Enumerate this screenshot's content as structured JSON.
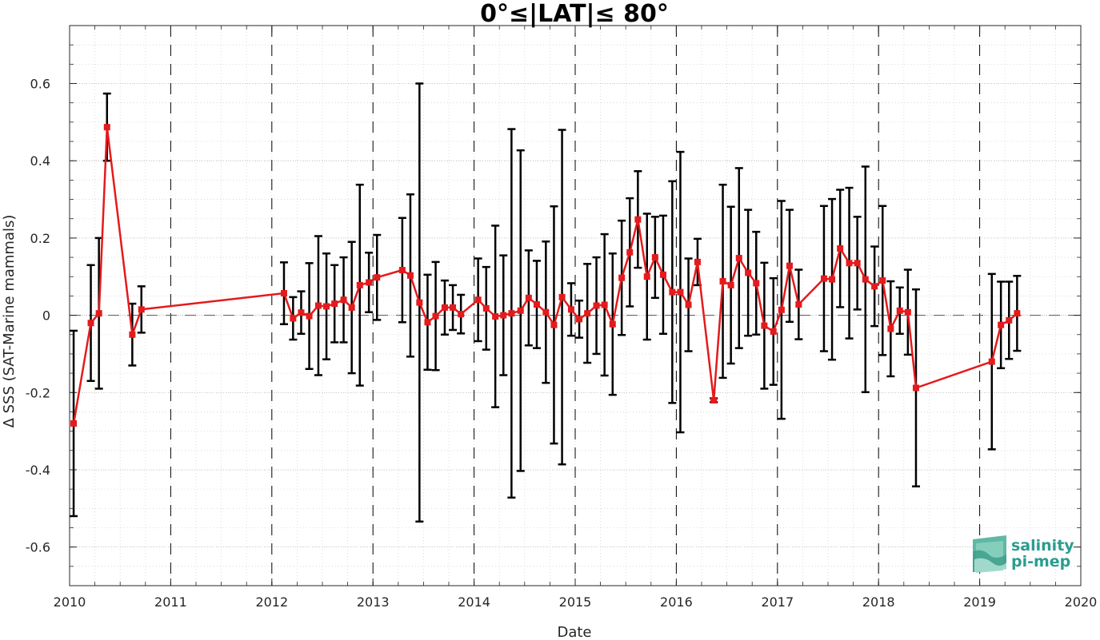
{
  "chart_data": {
    "type": "line",
    "title": "0°≤|LAT|≤ 80°",
    "xlabel": "Date",
    "ylabel": "Δ SSS (SAT-Marine mammals)",
    "xlim": [
      2010,
      2020
    ],
    "ylim": [
      -0.7,
      0.75
    ],
    "x_ticks": [
      "2010",
      "2011",
      "2012",
      "2013",
      "2014",
      "2015",
      "2016",
      "2017",
      "2018",
      "2019",
      "2020"
    ],
    "y_ticks": [
      "-0.6",
      "-0.4",
      "-0.2",
      "0",
      "0.2",
      "0.4",
      "0.6"
    ],
    "y_tick_values": [
      -0.6,
      -0.4,
      -0.2,
      0,
      0.2,
      0.4,
      0.6
    ],
    "grid": true,
    "year_separators": "dashed vertical lines at each year",
    "zero_line": "dashed horizontal line at 0",
    "colors": {
      "series": "#e41a1c",
      "errorbars": "#000000",
      "grid": "#c8c8c8"
    },
    "series": [
      {
        "marker": "square",
        "segments": [
          [
            {
              "x": 2010.04,
              "y": -0.28,
              "err": 0.24
            },
            {
              "x": 2010.21,
              "y": -0.02,
              "err": 0.15
            },
            {
              "x": 2010.29,
              "y": 0.005,
              "err": 0.195
            },
            {
              "x": 2010.37,
              "y": 0.487,
              "err": 0.087
            },
            {
              "x": 2010.62,
              "y": -0.05,
              "err": 0.08
            },
            {
              "x": 2010.71,
              "y": 0.015,
              "err": 0.06
            },
            {
              "x": 2012.12,
              "y": 0.057,
              "err": 0.08
            },
            {
              "x": 2012.21,
              "y": -0.008,
              "err": 0.055
            },
            {
              "x": 2012.29,
              "y": 0.007,
              "err": 0.055
            },
            {
              "x": 2012.37,
              "y": -0.002,
              "err": 0.137
            },
            {
              "x": 2012.46,
              "y": 0.025,
              "err": 0.18
            },
            {
              "x": 2012.54,
              "y": 0.023,
              "err": 0.137
            },
            {
              "x": 2012.62,
              "y": 0.03,
              "err": 0.1
            },
            {
              "x": 2012.71,
              "y": 0.04,
              "err": 0.11
            },
            {
              "x": 2012.79,
              "y": 0.02,
              "err": 0.17
            },
            {
              "x": 2012.87,
              "y": 0.078,
              "err": 0.26
            },
            {
              "x": 2012.96,
              "y": 0.085,
              "err": 0.077
            },
            {
              "x": 2013.04,
              "y": 0.098,
              "err": 0.11
            },
            {
              "x": 2013.29,
              "y": 0.117,
              "err": 0.135
            },
            {
              "x": 2013.37,
              "y": 0.103,
              "err": 0.21
            },
            {
              "x": 2013.46,
              "y": 0.033,
              "err": 0.567
            },
            {
              "x": 2013.54,
              "y": -0.018,
              "err": 0.123
            },
            {
              "x": 2013.62,
              "y": -0.002,
              "err": 0.14
            },
            {
              "x": 2013.71,
              "y": 0.02,
              "err": 0.07
            },
            {
              "x": 2013.79,
              "y": 0.02,
              "err": 0.058
            },
            {
              "x": 2013.87,
              "y": 0.003,
              "err": 0.05
            },
            {
              "x": 2014.04,
              "y": 0.04,
              "err": 0.107
            },
            {
              "x": 2014.12,
              "y": 0.018,
              "err": 0.107
            },
            {
              "x": 2014.21,
              "y": -0.003,
              "err": 0.235
            },
            {
              "x": 2014.29,
              "y": 0.0,
              "err": 0.155
            },
            {
              "x": 2014.37,
              "y": 0.005,
              "err": 0.477
            },
            {
              "x": 2014.46,
              "y": 0.012,
              "err": 0.415
            },
            {
              "x": 2014.54,
              "y": 0.045,
              "err": 0.123
            },
            {
              "x": 2014.62,
              "y": 0.028,
              "err": 0.113
            },
            {
              "x": 2014.71,
              "y": 0.008,
              "err": 0.183
            },
            {
              "x": 2014.79,
              "y": -0.025,
              "err": 0.307
            },
            {
              "x": 2014.87,
              "y": 0.047,
              "err": 0.433
            },
            {
              "x": 2014.96,
              "y": 0.015,
              "err": 0.068
            },
            {
              "x": 2015.04,
              "y": -0.01,
              "err": 0.048
            },
            {
              "x": 2015.12,
              "y": 0.005,
              "err": 0.128
            },
            {
              "x": 2015.21,
              "y": 0.025,
              "err": 0.125
            },
            {
              "x": 2015.29,
              "y": 0.027,
              "err": 0.183
            },
            {
              "x": 2015.37,
              "y": -0.023,
              "err": 0.183
            },
            {
              "x": 2015.46,
              "y": 0.097,
              "err": 0.148
            },
            {
              "x": 2015.54,
              "y": 0.163,
              "err": 0.14
            },
            {
              "x": 2015.62,
              "y": 0.248,
              "err": 0.125
            },
            {
              "x": 2015.71,
              "y": 0.1,
              "err": 0.163
            },
            {
              "x": 2015.79,
              "y": 0.15,
              "err": 0.105
            },
            {
              "x": 2015.87,
              "y": 0.105,
              "err": 0.153
            },
            {
              "x": 2015.96,
              "y": 0.06,
              "err": 0.287
            },
            {
              "x": 2016.04,
              "y": 0.06,
              "err": 0.363
            },
            {
              "x": 2016.12,
              "y": 0.027,
              "err": 0.12
            },
            {
              "x": 2016.21,
              "y": 0.138,
              "err": 0.06
            },
            {
              "x": 2016.37,
              "y": -0.22,
              "err": 0.005
            },
            {
              "x": 2016.46,
              "y": 0.088,
              "err": 0.25
            },
            {
              "x": 2016.54,
              "y": 0.078,
              "err": 0.203
            },
            {
              "x": 2016.62,
              "y": 0.148,
              "err": 0.233
            },
            {
              "x": 2016.71,
              "y": 0.11,
              "err": 0.163
            },
            {
              "x": 2016.79,
              "y": 0.083,
              "err": 0.133
            },
            {
              "x": 2016.87,
              "y": -0.027,
              "err": 0.163
            },
            {
              "x": 2016.96,
              "y": -0.042,
              "err": 0.138
            },
            {
              "x": 2017.04,
              "y": 0.014,
              "err": 0.282
            },
            {
              "x": 2017.12,
              "y": 0.128,
              "err": 0.145
            },
            {
              "x": 2017.21,
              "y": 0.028,
              "err": 0.09
            },
            {
              "x": 2017.46,
              "y": 0.095,
              "err": 0.188
            },
            {
              "x": 2017.54,
              "y": 0.093,
              "err": 0.208
            },
            {
              "x": 2017.62,
              "y": 0.173,
              "err": 0.152
            },
            {
              "x": 2017.71,
              "y": 0.135,
              "err": 0.195
            },
            {
              "x": 2017.79,
              "y": 0.135,
              "err": 0.12
            },
            {
              "x": 2017.87,
              "y": 0.093,
              "err": 0.292
            },
            {
              "x": 2017.96,
              "y": 0.075,
              "err": 0.103
            },
            {
              "x": 2018.04,
              "y": 0.09,
              "err": 0.193
            },
            {
              "x": 2018.12,
              "y": -0.035,
              "err": 0.123
            },
            {
              "x": 2018.21,
              "y": 0.012,
              "err": 0.06
            },
            {
              "x": 2018.29,
              "y": 0.008,
              "err": 0.11
            },
            {
              "x": 2018.37,
              "y": -0.188,
              "err": 0.255
            },
            {
              "x": 2019.12,
              "y": -0.12,
              "err": 0.227
            },
            {
              "x": 2019.21,
              "y": -0.025,
              "err": 0.112
            },
            {
              "x": 2019.29,
              "y": -0.013,
              "err": 0.1
            },
            {
              "x": 2019.37,
              "y": 0.005,
              "err": 0.097
            }
          ]
        ]
      }
    ]
  },
  "logo": {
    "line1": "salinity",
    "line2": "pi-mep"
  }
}
